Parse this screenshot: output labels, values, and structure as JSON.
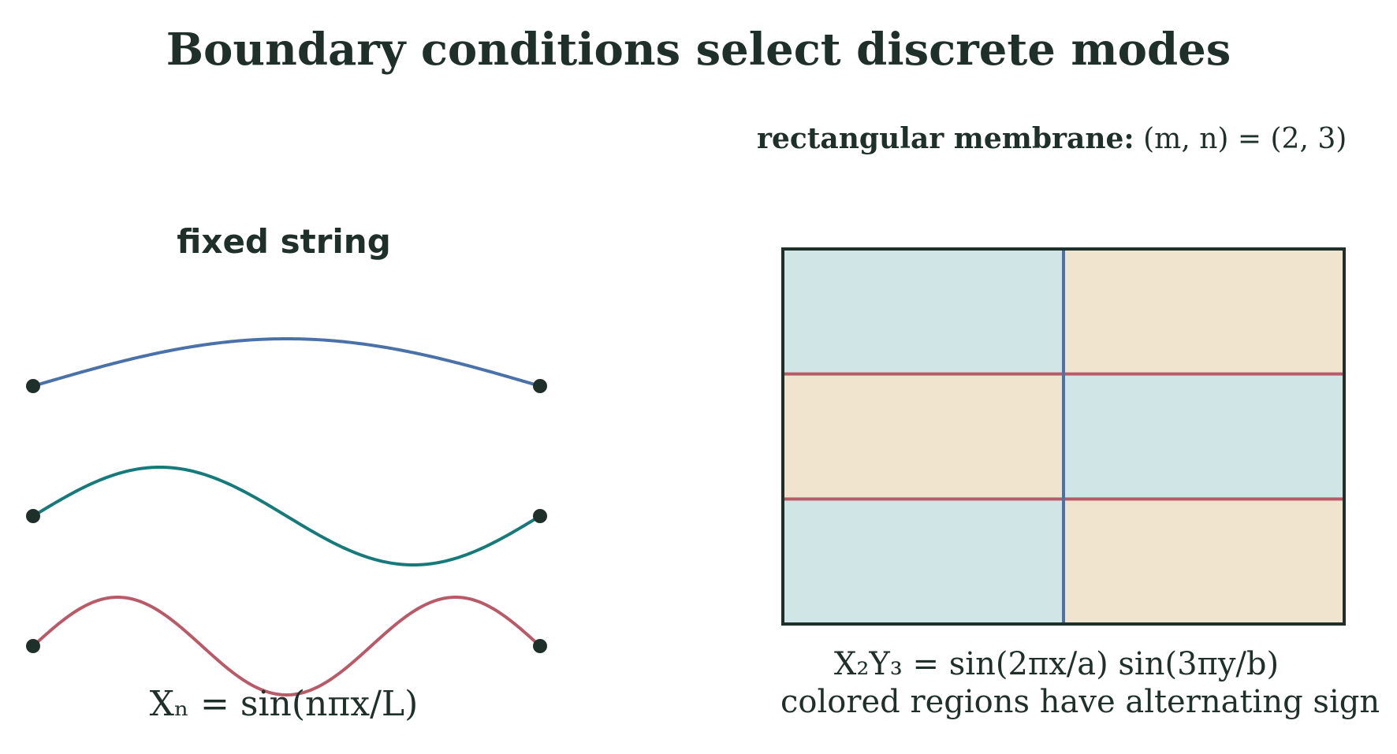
{
  "title": "Boundary conditions select discrete modes",
  "string_panel": {
    "title": "fixed string",
    "formula": "Xₙ = sin(nπx/L)",
    "modes": [
      {
        "n": 1,
        "color": "#4a72a8"
      },
      {
        "n": 2,
        "color": "#167a7a"
      },
      {
        "n": 3,
        "color": "#b85a68"
      }
    ],
    "endpoint_color": "#1f302b"
  },
  "membrane_panel": {
    "title_bold": "rectangular membrane:",
    "title_math": "(m, n) = (2, 3)",
    "m": 2,
    "n": 3,
    "formula": "X₂Y₃ = sin(2πx/a) sin(3πy/b)",
    "caption": "colored regions have alternating sign",
    "positive_color": "#cfe5e6",
    "negative_color": "#f0e4cf",
    "vertical_nodal_color": "#4a72a8",
    "horizontal_nodal_color": "#b85a68",
    "border_color": "#1f302b"
  }
}
